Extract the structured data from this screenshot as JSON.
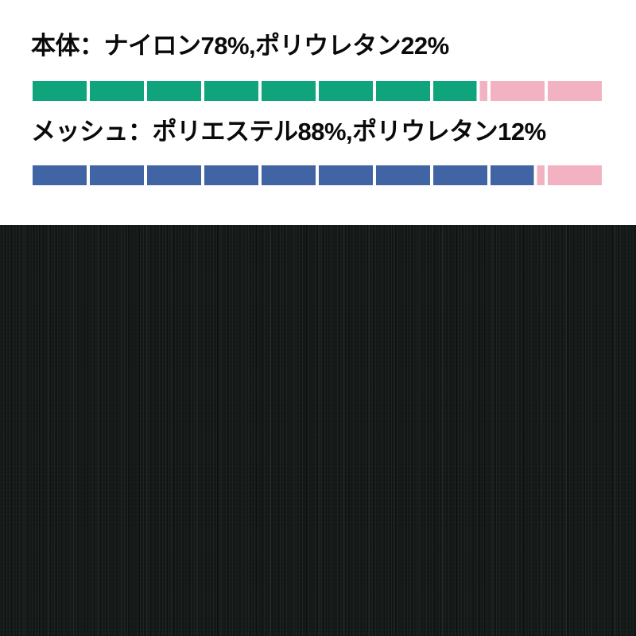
{
  "page": {
    "background_color": "#ffffff"
  },
  "chart_data": [
    {
      "type": "bar",
      "title": "本体：ナイロン78%,ポリウレタン22%",
      "material": "本体",
      "segments": 10,
      "xlim": [
        0,
        100
      ],
      "divider_color": "#ffffff",
      "series": [
        {
          "name": "ナイロン",
          "value": 78,
          "color": "#10a47d"
        },
        {
          "name": "ポリウレタン",
          "value": 22,
          "color": "#f3b2c2"
        }
      ]
    },
    {
      "type": "bar",
      "title": "メッシュ：ポリエステル88%,ポリウレタン12%",
      "material": "メッシュ",
      "segments": 10,
      "xlim": [
        0,
        100
      ],
      "divider_color": "#ffffff",
      "series": [
        {
          "name": "ポリエステル",
          "value": 88,
          "color": "#4164a5"
        },
        {
          "name": "ポリウレタン",
          "value": 12,
          "color": "#f3b2c2"
        }
      ]
    }
  ],
  "fabric_swatch": {
    "base_color": "#151a19",
    "rib_direction": "vertical"
  }
}
